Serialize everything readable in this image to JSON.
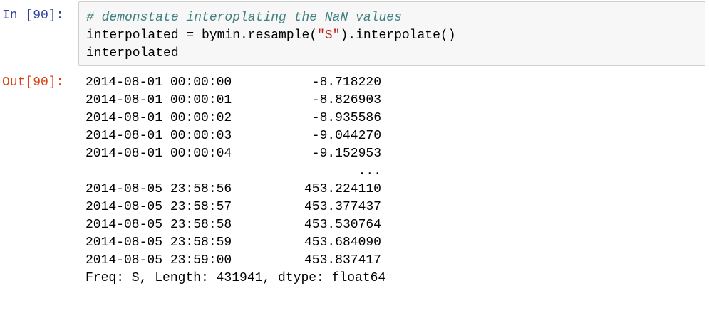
{
  "input": {
    "prompt": "In [90]:",
    "comment": "# demonstate interoplating the NaN values",
    "line2_prefix": "interpolated = bymin.resample(",
    "line2_string": "\"S\"",
    "line2_suffix": ").interpolate()",
    "line3": "interpolated"
  },
  "output": {
    "prompt": "Out[90]:",
    "rows_top": [
      {
        "index": "2014-08-01 00:00:00",
        "value": "-8.718220"
      },
      {
        "index": "2014-08-01 00:00:01",
        "value": "-8.826903"
      },
      {
        "index": "2014-08-01 00:00:02",
        "value": "-8.935586"
      },
      {
        "index": "2014-08-01 00:00:03",
        "value": "-9.044270"
      },
      {
        "index": "2014-08-01 00:00:04",
        "value": "-9.152953"
      }
    ],
    "ellipsis": "...",
    "rows_bottom": [
      {
        "index": "2014-08-05 23:58:56",
        "value": "453.224110"
      },
      {
        "index": "2014-08-05 23:58:57",
        "value": "453.377437"
      },
      {
        "index": "2014-08-05 23:58:58",
        "value": "453.530764"
      },
      {
        "index": "2014-08-05 23:58:59",
        "value": "453.684090"
      },
      {
        "index": "2014-08-05 23:59:00",
        "value": "453.837417"
      }
    ],
    "meta": "Freq: S, Length: 431941, dtype: float64"
  },
  "colors": {
    "in_prompt": "#303F9F",
    "out_prompt": "#D84315",
    "comment": "#408080",
    "string": "#BA2121",
    "input_bg": "#f7f7f7",
    "input_border": "#cfcfcf"
  }
}
